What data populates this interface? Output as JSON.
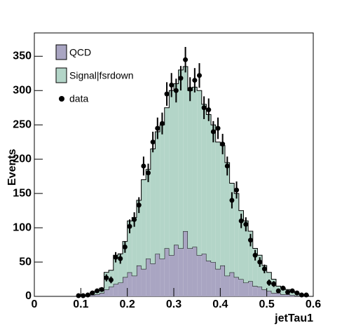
{
  "chart_data": {
    "type": "histogram",
    "xlabel": "jetTau1",
    "ylabel": "Events",
    "bins": [
      0,
      0.01,
      0.02,
      0.03,
      0.04,
      0.05,
      0.06,
      0.07,
      0.08,
      0.09,
      0.1,
      0.11,
      0.12,
      0.13,
      0.14,
      0.15,
      0.16,
      0.17,
      0.18,
      0.19,
      0.2,
      0.21,
      0.22,
      0.23,
      0.24,
      0.25,
      0.26,
      0.27,
      0.28,
      0.29,
      0.3,
      0.31,
      0.32,
      0.33,
      0.34,
      0.35,
      0.36,
      0.37,
      0.38,
      0.39,
      0.4,
      0.41,
      0.42,
      0.43,
      0.44,
      0.45,
      0.46,
      0.47,
      0.48,
      0.49,
      0.5,
      0.51,
      0.52,
      0.53,
      0.54,
      0.55,
      0.56,
      0.57,
      0.58,
      0.59,
      0.6
    ],
    "series": [
      {
        "name": "QCD",
        "color": "#a9a5c2",
        "stacked": true,
        "values": [
          0,
          0,
          0,
          0,
          0,
          0,
          0,
          0,
          0,
          0,
          0,
          1,
          2,
          3,
          5,
          10,
          14,
          18,
          20,
          28,
          35,
          30,
          45,
          40,
          55,
          48,
          62,
          55,
          70,
          60,
          75,
          70,
          95,
          70,
          72,
          60,
          62,
          52,
          50,
          40,
          45,
          30,
          35,
          28,
          25,
          20,
          22,
          15,
          14,
          10,
          8,
          5,
          5,
          3,
          3,
          2,
          1,
          1,
          0,
          0
        ]
      },
      {
        "name": "Signal|fsrdown",
        "color": "#b3d5c8",
        "stacked": true,
        "values": [
          0,
          0,
          0,
          0,
          0,
          0,
          0,
          0,
          0,
          0,
          1,
          1,
          4,
          5,
          7,
          25,
          24,
          42,
          42,
          52,
          75,
          85,
          95,
          130,
          130,
          167,
          178,
          195,
          205,
          240,
          235,
          260,
          240,
          230,
          233,
          240,
          218,
          213,
          200,
          185,
          175,
          165,
          130,
          122,
          100,
          90,
          73,
          55,
          46,
          35,
          27,
          20,
          10,
          9,
          7,
          5,
          4,
          2,
          2,
          0
        ]
      },
      {
        "name": "data",
        "color": "#000000",
        "points": true,
        "values": [
          null,
          null,
          null,
          null,
          null,
          null,
          null,
          null,
          null,
          1,
          1,
          2,
          5,
          8,
          10,
          27,
          24,
          57,
          55,
          72,
          102,
          112,
          133,
          190,
          180,
          225,
          245,
          252,
          295,
          308,
          300,
          318,
          345,
          302,
          315,
          322,
          275,
          272,
          240,
          245,
          222,
          190,
          140,
          155,
          110,
          105,
          82,
          60,
          50,
          40,
          20,
          18,
          8,
          12,
          6,
          8,
          5,
          2,
          2,
          null
        ]
      }
    ],
    "xlim": [
      0,
      0.6
    ],
    "xticks": [
      0,
      0.1,
      0.2,
      0.3,
      0.4,
      0.5,
      0.6
    ],
    "ylim": [
      0,
      384
    ],
    "yticks": [
      0,
      50,
      100,
      150,
      200,
      250,
      300,
      350
    ],
    "legend": "top-left"
  }
}
